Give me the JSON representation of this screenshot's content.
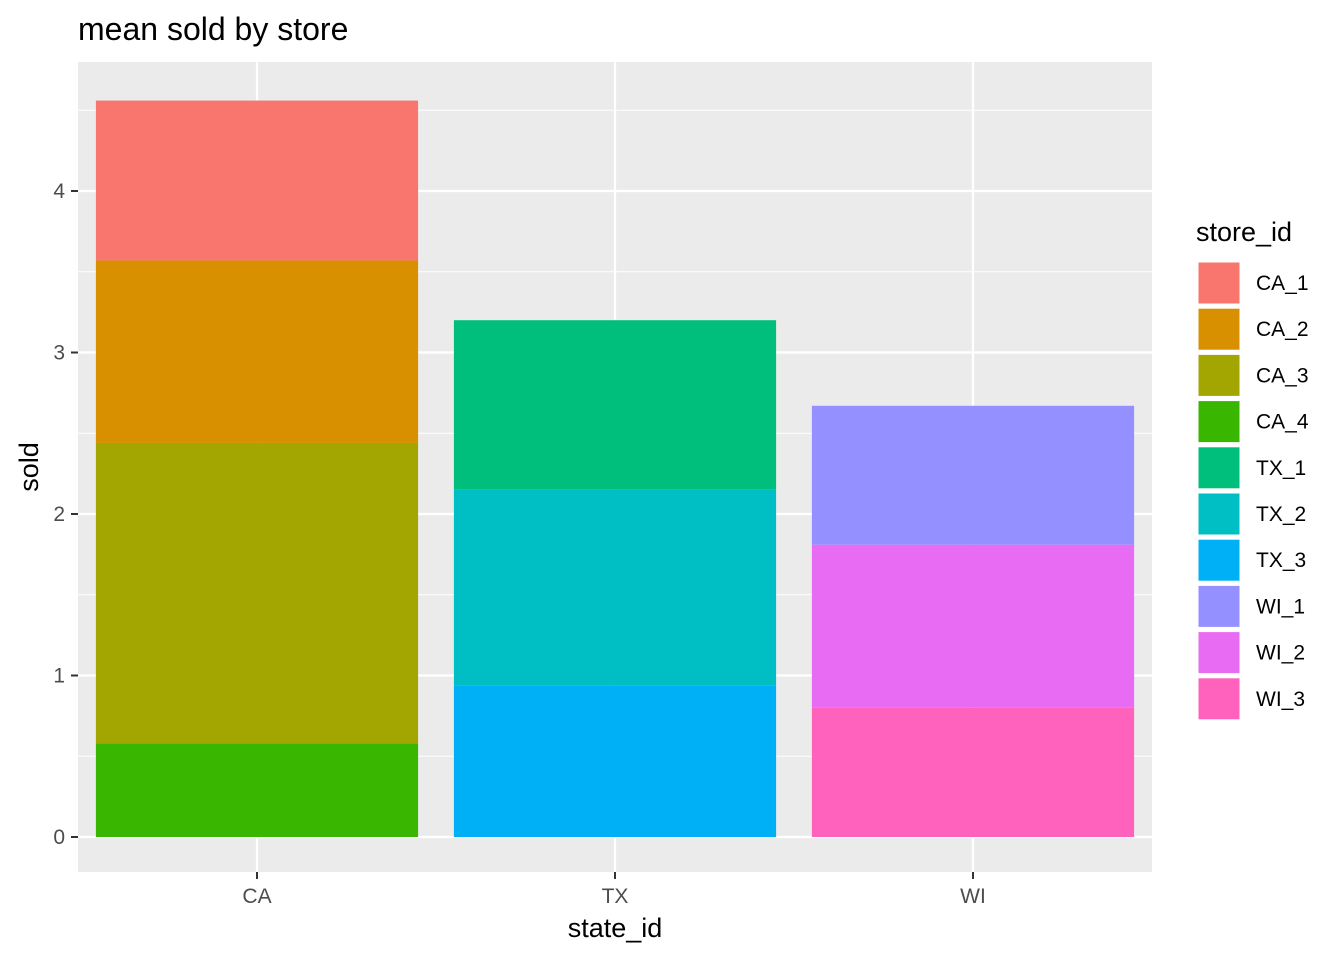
{
  "chart_data": {
    "type": "bar",
    "stacked": true,
    "title": "mean sold by store",
    "xlabel": "state_id",
    "ylabel": "sold",
    "categories": [
      "CA",
      "TX",
      "WI"
    ],
    "ylim": [
      0,
      4.8
    ],
    "yticks": [
      0,
      1,
      2,
      3,
      4
    ],
    "grid": true,
    "legend": {
      "title": "store_id",
      "position": "right",
      "entries": [
        "CA_1",
        "CA_2",
        "CA_3",
        "CA_4",
        "TX_1",
        "TX_2",
        "TX_3",
        "WI_1",
        "WI_2",
        "WI_3"
      ]
    },
    "series": [
      {
        "name": "CA_1",
        "color": "#F8766D",
        "values": [
          0.99,
          0,
          0
        ]
      },
      {
        "name": "CA_2",
        "color": "#D89000",
        "values": [
          1.13,
          0,
          0
        ]
      },
      {
        "name": "CA_3",
        "color": "#A3A500",
        "values": [
          1.86,
          0,
          0
        ]
      },
      {
        "name": "CA_4",
        "color": "#39B600",
        "values": [
          0.58,
          0,
          0
        ]
      },
      {
        "name": "TX_1",
        "color": "#00BF7D",
        "values": [
          0,
          1.05,
          0
        ]
      },
      {
        "name": "TX_2",
        "color": "#00BFC4",
        "values": [
          0,
          1.21,
          0
        ]
      },
      {
        "name": "TX_3",
        "color": "#00B0F6",
        "values": [
          0,
          0.94,
          0
        ]
      },
      {
        "name": "WI_1",
        "color": "#9590FF",
        "values": [
          0,
          0,
          0.86
        ]
      },
      {
        "name": "WI_2",
        "color": "#E76BF3",
        "values": [
          0,
          0,
          1.01
        ]
      },
      {
        "name": "WI_3",
        "color": "#FF62BC",
        "values": [
          0,
          0,
          0.8
        ]
      }
    ]
  }
}
